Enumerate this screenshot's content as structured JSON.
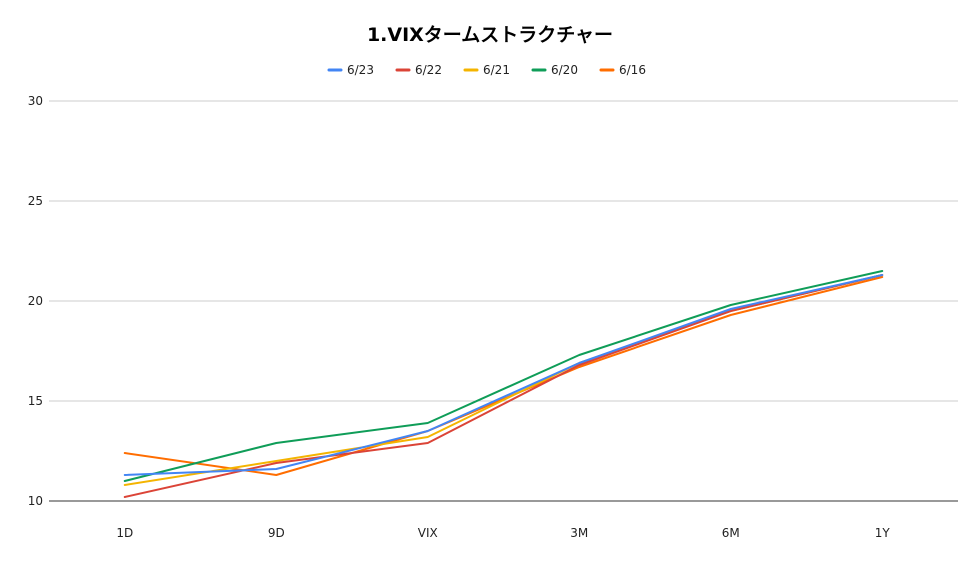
{
  "chart_data": {
    "type": "line",
    "title": "1.VIXタームストラクチャー",
    "xlabel": "",
    "ylabel": "",
    "categories": [
      "1D",
      "9D",
      "VIX",
      "3M",
      "6M",
      "1Y"
    ],
    "ylim": [
      10,
      30
    ],
    "yticks": [
      10,
      15,
      20,
      25,
      30
    ],
    "grid": true,
    "legend_position": "top",
    "series": [
      {
        "name": "6/23",
        "color": "#4285F4",
        "values": [
          11.3,
          11.6,
          13.5,
          16.9,
          19.6,
          21.3
        ]
      },
      {
        "name": "6/22",
        "color": "#DB4437",
        "values": [
          10.2,
          11.9,
          12.9,
          16.8,
          19.5,
          21.3
        ]
      },
      {
        "name": "6/21",
        "color": "#F4B400",
        "values": [
          10.8,
          12.0,
          13.2,
          16.9,
          19.5,
          21.3
        ]
      },
      {
        "name": "6/20",
        "color": "#0F9D58",
        "values": [
          11.0,
          12.9,
          13.9,
          17.3,
          19.8,
          21.5
        ]
      },
      {
        "name": "6/16",
        "color": "#FF6D00",
        "values": [
          12.4,
          11.3,
          13.5,
          16.7,
          19.3,
          21.2
        ]
      }
    ]
  }
}
